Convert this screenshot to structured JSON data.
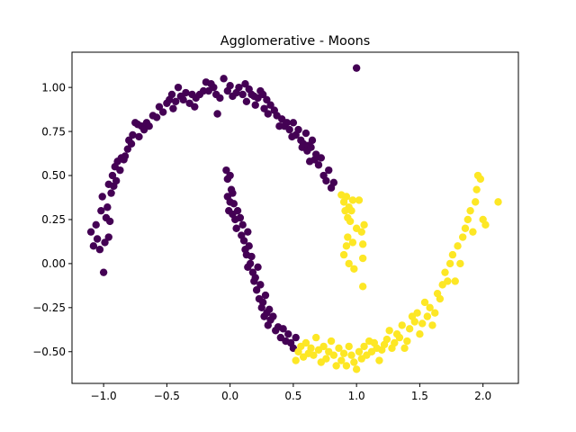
{
  "chart_data": {
    "type": "scatter",
    "title": "Agglomerative - Moons",
    "xlabel": "",
    "ylabel": "",
    "xlim": [
      -1.25,
      2.28
    ],
    "ylim": [
      -0.68,
      1.2
    ],
    "x_ticks": [
      -1.0,
      -0.5,
      0.0,
      0.5,
      1.0,
      1.5,
      2.0
    ],
    "x_tick_labels": [
      "−1.0",
      "−0.5",
      "0.0",
      "0.5",
      "1.0",
      "1.5",
      "2.0"
    ],
    "y_ticks": [
      -0.5,
      -0.25,
      0.0,
      0.25,
      0.5,
      0.75,
      1.0
    ],
    "y_tick_labels": [
      "−0.50",
      "−0.25",
      "0.00",
      "0.25",
      "0.50",
      "0.75",
      "1.00"
    ],
    "grid": false,
    "colors": {
      "cluster_0": "#440154",
      "cluster_1": "#fde725"
    },
    "series": [
      {
        "cluster": 0,
        "points": [
          [
            -1.1,
            0.18
          ],
          [
            -1.08,
            0.1
          ],
          [
            -1.06,
            0.22
          ],
          [
            -1.05,
            0.14
          ],
          [
            -1.03,
            0.08
          ],
          [
            -1.02,
            0.3
          ],
          [
            -1.01,
            0.38
          ],
          [
            -1.0,
            -0.05
          ],
          [
            -0.99,
            0.12
          ],
          [
            -0.98,
            0.26
          ],
          [
            -0.97,
            0.32
          ],
          [
            -0.96,
            0.15
          ],
          [
            -0.96,
            0.45
          ],
          [
            -0.95,
            0.24
          ],
          [
            -0.94,
            0.4
          ],
          [
            -0.93,
            0.5
          ],
          [
            -0.92,
            0.44
          ],
          [
            -0.91,
            0.55
          ],
          [
            -0.9,
            0.47
          ],
          [
            -0.89,
            0.58
          ],
          [
            -0.87,
            0.53
          ],
          [
            -0.86,
            0.6
          ],
          [
            -0.84,
            0.59
          ],
          [
            -0.83,
            0.61
          ],
          [
            -0.81,
            0.65
          ],
          [
            -0.8,
            0.7
          ],
          [
            -0.78,
            0.68
          ],
          [
            -0.77,
            0.73
          ],
          [
            -0.75,
            0.8
          ],
          [
            -0.73,
            0.79
          ],
          [
            -0.72,
            0.72
          ],
          [
            -0.7,
            0.78
          ],
          [
            -0.68,
            0.76
          ],
          [
            -0.66,
            0.8
          ],
          [
            -0.64,
            0.78
          ],
          [
            -0.61,
            0.84
          ],
          [
            -0.58,
            0.83
          ],
          [
            -0.56,
            0.89
          ],
          [
            -0.53,
            0.86
          ],
          [
            -0.5,
            0.91
          ],
          [
            -0.48,
            0.93
          ],
          [
            -0.46,
            0.96
          ],
          [
            -0.45,
            0.88
          ],
          [
            -0.43,
            0.92
          ],
          [
            -0.41,
            1.0
          ],
          [
            -0.39,
            0.95
          ],
          [
            -0.37,
            0.93
          ],
          [
            -0.35,
            0.97
          ],
          [
            -0.32,
            0.91
          ],
          [
            -0.3,
            0.96
          ],
          [
            -0.28,
            0.89
          ],
          [
            -0.27,
            0.94
          ],
          [
            -0.24,
            0.96
          ],
          [
            -0.21,
            0.98
          ],
          [
            -0.19,
            1.03
          ],
          [
            -0.17,
            0.98
          ],
          [
            -0.15,
            1.02
          ],
          [
            -0.13,
            1.0
          ],
          [
            -0.11,
            0.96
          ],
          [
            -0.1,
            0.85
          ],
          [
            -0.08,
            0.94
          ],
          [
            -0.05,
            1.05
          ],
          [
            -0.02,
            0.98
          ],
          [
            0.0,
            1.01
          ],
          [
            0.02,
            0.95
          ],
          [
            0.05,
            0.97
          ],
          [
            0.07,
            1.0
          ],
          [
            0.1,
            0.96
          ],
          [
            0.12,
            1.02
          ],
          [
            0.13,
            0.92
          ],
          [
            0.15,
            0.99
          ],
          [
            0.17,
            0.96
          ],
          [
            0.19,
            0.95
          ],
          [
            0.2,
            0.9
          ],
          [
            0.22,
            0.94
          ],
          [
            0.24,
            0.98
          ],
          [
            0.26,
            0.96
          ],
          [
            0.27,
            0.88
          ],
          [
            0.29,
            0.93
          ],
          [
            0.3,
            0.85
          ],
          [
            0.32,
            0.9
          ],
          [
            0.35,
            0.87
          ],
          [
            0.37,
            0.84
          ],
          [
            0.39,
            0.78
          ],
          [
            0.41,
            0.82
          ],
          [
            0.43,
            0.78
          ],
          [
            0.45,
            0.8
          ],
          [
            0.47,
            0.76
          ],
          [
            0.49,
            0.72
          ],
          [
            0.5,
            0.8
          ],
          [
            0.52,
            0.73
          ],
          [
            0.54,
            0.76
          ],
          [
            0.56,
            0.7
          ],
          [
            0.57,
            0.66
          ],
          [
            0.58,
            0.68
          ],
          [
            0.6,
            0.74
          ],
          [
            0.61,
            0.64
          ],
          [
            0.62,
            0.67
          ],
          [
            0.63,
            0.58
          ],
          [
            0.64,
            0.66
          ],
          [
            0.65,
            0.7
          ],
          [
            0.67,
            0.59
          ],
          [
            0.68,
            0.62
          ],
          [
            0.7,
            0.56
          ],
          [
            0.72,
            0.6
          ],
          [
            0.74,
            0.5
          ],
          [
            0.76,
            0.47
          ],
          [
            0.78,
            0.53
          ],
          [
            0.8,
            0.43
          ],
          [
            0.82,
            0.46
          ],
          [
            1.0,
            1.11
          ],
          [
            -0.03,
            0.53
          ],
          [
            -0.02,
            0.48
          ],
          [
            0.0,
            0.5
          ],
          [
            0.01,
            0.42
          ],
          [
            -0.02,
            0.38
          ],
          [
            0.0,
            0.35
          ],
          [
            -0.01,
            0.3
          ],
          [
            0.02,
            0.4
          ],
          [
            0.03,
            0.34
          ],
          [
            0.02,
            0.28
          ],
          [
            0.04,
            0.25
          ],
          [
            0.05,
            0.2
          ],
          [
            0.06,
            0.3
          ],
          [
            0.08,
            0.26
          ],
          [
            0.09,
            0.16
          ],
          [
            0.1,
            0.22
          ],
          [
            0.11,
            0.13
          ],
          [
            0.12,
            0.08
          ],
          [
            0.13,
            0.05
          ],
          [
            0.14,
            0.18
          ],
          [
            0.15,
            0.1
          ],
          [
            0.14,
            -0.02
          ],
          [
            0.16,
            0.0
          ],
          [
            0.17,
            0.04
          ],
          [
            0.18,
            -0.05
          ],
          [
            0.19,
            -0.1
          ],
          [
            0.2,
            -0.08
          ],
          [
            0.21,
            -0.15
          ],
          [
            0.22,
            -0.02
          ],
          [
            0.23,
            -0.2
          ],
          [
            0.24,
            -0.12
          ],
          [
            0.25,
            -0.25
          ],
          [
            0.26,
            -0.22
          ],
          [
            0.27,
            -0.3
          ],
          [
            0.28,
            -0.18
          ],
          [
            0.29,
            -0.28
          ],
          [
            0.3,
            -0.35
          ],
          [
            0.31,
            -0.26
          ],
          [
            0.32,
            -0.32
          ],
          [
            0.34,
            -0.3
          ],
          [
            0.36,
            -0.38
          ],
          [
            0.38,
            -0.36
          ],
          [
            0.4,
            -0.42
          ],
          [
            0.42,
            -0.37
          ],
          [
            0.44,
            -0.44
          ],
          [
            0.46,
            -0.4
          ],
          [
            0.48,
            -0.45
          ],
          [
            0.5,
            -0.48
          ],
          [
            0.52,
            -0.42
          ]
        ]
      },
      {
        "cluster": 1,
        "points": [
          [
            0.88,
            0.39
          ],
          [
            0.9,
            0.35
          ],
          [
            0.91,
            0.3
          ],
          [
            0.92,
            0.38
          ],
          [
            0.93,
            0.26
          ],
          [
            0.94,
            0.32
          ],
          [
            0.95,
            0.24
          ],
          [
            0.96,
            0.3
          ],
          [
            0.97,
            0.36
          ],
          [
            0.9,
            0.05
          ],
          [
            0.92,
            0.1
          ],
          [
            0.93,
            0.15
          ],
          [
            0.94,
            0.0
          ],
          [
            0.97,
            0.12
          ],
          [
            0.98,
            -0.03
          ],
          [
            1.0,
            0.2
          ],
          [
            1.02,
            0.36
          ],
          [
            1.04,
            0.18
          ],
          [
            1.05,
            0.11
          ],
          [
            1.05,
            -0.13
          ],
          [
            1.06,
            0.22
          ],
          [
            1.05,
            0.03
          ],
          [
            0.52,
            -0.55
          ],
          [
            0.54,
            -0.5
          ],
          [
            0.56,
            -0.47
          ],
          [
            0.58,
            -0.53
          ],
          [
            0.6,
            -0.45
          ],
          [
            0.62,
            -0.51
          ],
          [
            0.64,
            -0.48
          ],
          [
            0.66,
            -0.52
          ],
          [
            0.68,
            -0.42
          ],
          [
            0.7,
            -0.49
          ],
          [
            0.72,
            -0.56
          ],
          [
            0.74,
            -0.47
          ],
          [
            0.76,
            -0.54
          ],
          [
            0.78,
            -0.5
          ],
          [
            0.8,
            -0.44
          ],
          [
            0.82,
            -0.52
          ],
          [
            0.84,
            -0.58
          ],
          [
            0.86,
            -0.48
          ],
          [
            0.88,
            -0.55
          ],
          [
            0.9,
            -0.51
          ],
          [
            0.92,
            -0.58
          ],
          [
            0.94,
            -0.47
          ],
          [
            0.96,
            -0.52
          ],
          [
            0.98,
            -0.56
          ],
          [
            1.0,
            -0.6
          ],
          [
            1.02,
            -0.5
          ],
          [
            1.04,
            -0.54
          ],
          [
            1.06,
            -0.47
          ],
          [
            1.08,
            -0.52
          ],
          [
            1.1,
            -0.44
          ],
          [
            1.12,
            -0.5
          ],
          [
            1.14,
            -0.45
          ],
          [
            1.16,
            -0.48
          ],
          [
            1.18,
            -0.55
          ],
          [
            1.2,
            -0.49
          ],
          [
            1.22,
            -0.46
          ],
          [
            1.24,
            -0.43
          ],
          [
            1.26,
            -0.38
          ],
          [
            1.28,
            -0.48
          ],
          [
            1.3,
            -0.45
          ],
          [
            1.32,
            -0.4
          ],
          [
            1.34,
            -0.42
          ],
          [
            1.36,
            -0.35
          ],
          [
            1.38,
            -0.48
          ],
          [
            1.4,
            -0.44
          ],
          [
            1.42,
            -0.37
          ],
          [
            1.44,
            -0.3
          ],
          [
            1.46,
            -0.33
          ],
          [
            1.48,
            -0.28
          ],
          [
            1.5,
            -0.4
          ],
          [
            1.52,
            -0.34
          ],
          [
            1.54,
            -0.22
          ],
          [
            1.56,
            -0.3
          ],
          [
            1.58,
            -0.25
          ],
          [
            1.6,
            -0.35
          ],
          [
            1.62,
            -0.28
          ],
          [
            1.64,
            -0.17
          ],
          [
            1.66,
            -0.2
          ],
          [
            1.68,
            -0.12
          ],
          [
            1.7,
            -0.05
          ],
          [
            1.72,
            -0.1
          ],
          [
            1.74,
            0.0
          ],
          [
            1.76,
            0.05
          ],
          [
            1.78,
            -0.1
          ],
          [
            1.8,
            0.1
          ],
          [
            1.82,
            0.0
          ],
          [
            1.84,
            0.15
          ],
          [
            1.86,
            0.2
          ],
          [
            1.88,
            0.25
          ],
          [
            1.9,
            0.3
          ],
          [
            1.92,
            0.18
          ],
          [
            1.94,
            0.35
          ],
          [
            1.95,
            0.42
          ],
          [
            1.96,
            0.5
          ],
          [
            1.98,
            0.48
          ],
          [
            2.0,
            0.25
          ],
          [
            2.02,
            0.22
          ],
          [
            2.12,
            0.35
          ]
        ]
      }
    ]
  }
}
